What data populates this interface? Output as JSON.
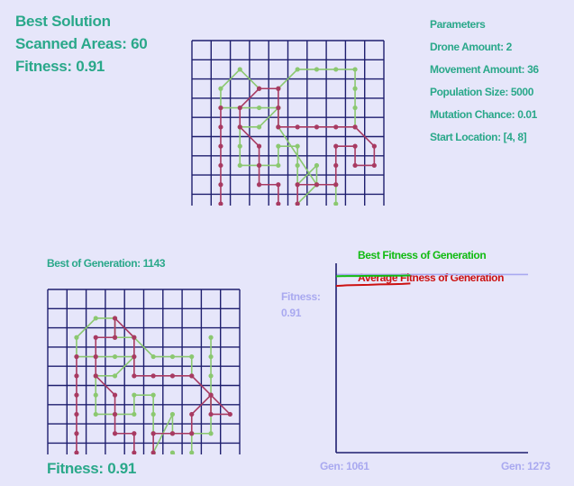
{
  "best_solution": {
    "title": "Best Solution",
    "scanned_label": "Scanned Areas: 60",
    "fitness_label": "Fitness: 0.91"
  },
  "parameters": {
    "title": "Parameters",
    "items": [
      "Drone Amount: 2",
      "Movement Amount: 36",
      "Population Size: 5000",
      "Mutation Chance: 0.01",
      "Start Location: [4, 8]"
    ]
  },
  "generation": {
    "title": "Best of Generation: 1143",
    "fitness_label": "Fitness: 0.91"
  },
  "colors": {
    "background": "#e6e6fa",
    "text": "#2aa88a",
    "grid": "#1e1e6e",
    "drone_1": "#8bc870",
    "drone_2": "#a83a62",
    "best_fitness": "#11bb11",
    "average_fitness": "#cc1111",
    "reference": "#a9a9f0"
  },
  "grids": {
    "rows": 9,
    "cols": 10,
    "best_paths": [
      {
        "name": "drone-1",
        "color": "#8bc870",
        "points": [
          [
            8,
            4
          ],
          [
            8,
            3
          ],
          [
            8,
            2
          ],
          [
            8,
            1
          ],
          [
            7,
            1
          ],
          [
            6,
            1
          ],
          [
            5,
            1
          ],
          [
            4,
            2
          ],
          [
            3,
            2
          ],
          [
            2,
            1
          ],
          [
            1,
            2
          ],
          [
            1,
            3
          ],
          [
            2,
            3
          ],
          [
            3,
            3
          ],
          [
            4,
            3
          ],
          [
            3,
            4
          ],
          [
            2,
            4
          ],
          [
            2,
            5
          ],
          [
            2,
            6
          ],
          [
            3,
            6
          ],
          [
            4,
            6
          ],
          [
            4,
            5
          ],
          [
            5,
            5
          ],
          [
            5,
            6
          ],
          [
            5,
            7
          ],
          [
            6,
            6
          ],
          [
            6,
            7
          ],
          [
            5,
            8
          ],
          [
            5,
            9
          ],
          [
            6,
            9
          ],
          [
            7,
            9
          ],
          [
            7,
            8
          ],
          [
            7,
            7
          ],
          [
            6,
            7
          ],
          [
            4,
            4
          ],
          [
            4,
            3
          ]
        ]
      },
      {
        "name": "drone-2",
        "color": "#a83a62",
        "points": [
          [
            4,
            8
          ],
          [
            4,
            7
          ],
          [
            3,
            7
          ],
          [
            3,
            6
          ],
          [
            3,
            5
          ],
          [
            2,
            4
          ],
          [
            2,
            3
          ],
          [
            3,
            2
          ],
          [
            4,
            2
          ],
          [
            4,
            3
          ],
          [
            4,
            4
          ],
          [
            5,
            4
          ],
          [
            6,
            4
          ],
          [
            7,
            4
          ],
          [
            8,
            4
          ],
          [
            9,
            5
          ],
          [
            9,
            6
          ],
          [
            8,
            6
          ],
          [
            8,
            5
          ],
          [
            7,
            5
          ],
          [
            7,
            6
          ],
          [
            7,
            7
          ],
          [
            6,
            7
          ],
          [
            5,
            7
          ],
          [
            5,
            8
          ],
          [
            5,
            9
          ],
          [
            4,
            9
          ],
          [
            3,
            9
          ],
          [
            2,
            9
          ],
          [
            1,
            9
          ],
          [
            1,
            8
          ],
          [
            1,
            7
          ],
          [
            1,
            6
          ],
          [
            1,
            5
          ],
          [
            1,
            4
          ],
          [
            1,
            3
          ]
        ]
      }
    ],
    "generation_paths": [
      {
        "name": "drone-1",
        "color": "#8bc870",
        "points": [
          [
            7,
            4
          ],
          [
            7,
            3
          ],
          [
            6,
            3
          ],
          [
            5,
            3
          ],
          [
            4,
            2
          ],
          [
            3,
            2
          ],
          [
            3,
            1
          ],
          [
            2,
            1
          ],
          [
            1,
            2
          ],
          [
            1,
            3
          ],
          [
            2,
            3
          ],
          [
            3,
            3
          ],
          [
            4,
            3
          ],
          [
            3,
            4
          ],
          [
            2,
            4
          ],
          [
            2,
            5
          ],
          [
            2,
            6
          ],
          [
            3,
            6
          ],
          [
            4,
            6
          ],
          [
            4,
            5
          ],
          [
            5,
            5
          ],
          [
            5,
            6
          ],
          [
            5,
            7
          ],
          [
            6,
            7
          ],
          [
            6,
            6
          ],
          [
            5,
            8
          ],
          [
            6,
            9
          ],
          [
            6,
            8
          ],
          [
            7,
            9
          ],
          [
            7,
            8
          ],
          [
            7,
            7
          ],
          [
            8,
            7
          ],
          [
            8,
            5
          ],
          [
            8,
            4
          ],
          [
            8,
            3
          ],
          [
            8,
            2
          ]
        ]
      },
      {
        "name": "drone-2",
        "color": "#a83a62",
        "points": [
          [
            4,
            8
          ],
          [
            4,
            7
          ],
          [
            3,
            7
          ],
          [
            3,
            6
          ],
          [
            3,
            5
          ],
          [
            2,
            4
          ],
          [
            2,
            3
          ],
          [
            2,
            2
          ],
          [
            3,
            2
          ],
          [
            3,
            1
          ],
          [
            4,
            2
          ],
          [
            4,
            3
          ],
          [
            4,
            4
          ],
          [
            5,
            4
          ],
          [
            6,
            4
          ],
          [
            7,
            4
          ],
          [
            8,
            5
          ],
          [
            9,
            6
          ],
          [
            8,
            6
          ],
          [
            8,
            5
          ],
          [
            7,
            6
          ],
          [
            7,
            7
          ],
          [
            6,
            7
          ],
          [
            5,
            7
          ],
          [
            5,
            8
          ],
          [
            5,
            9
          ],
          [
            4,
            9
          ],
          [
            3,
            9
          ],
          [
            2,
            9
          ],
          [
            1,
            9
          ],
          [
            1,
            8
          ],
          [
            1,
            7
          ],
          [
            1,
            6
          ],
          [
            1,
            5
          ],
          [
            1,
            4
          ],
          [
            1,
            3
          ]
        ]
      }
    ]
  },
  "chart_data": {
    "type": "line",
    "title": "",
    "series": [
      {
        "name": "Best Fitness of Generation",
        "x": [
          1061,
          1073,
          1085,
          1097,
          1109,
          1121,
          1134,
          1143
        ],
        "values": [
          0.902,
          0.903,
          0.903,
          0.904,
          0.904,
          0.905,
          0.905,
          0.906
        ]
      },
      {
        "name": "Average Fitness of Generation",
        "x": [
          1061,
          1073,
          1085,
          1097,
          1109,
          1121,
          1134,
          1143
        ],
        "values": [
          0.858,
          0.861,
          0.862,
          0.863,
          0.865,
          0.866,
          0.867,
          0.869
        ]
      }
    ],
    "reference_line": {
      "label": "Fitness:\n0.91",
      "value": 0.91
    },
    "x_range": [
      1061,
      1273
    ],
    "ylim": [
      0.1,
      0.92
    ],
    "x_tick_labels": [
      "Gen: 1061",
      "Gen: 1273"
    ],
    "y_label_lines": [
      "Fitness:",
      "0.91"
    ],
    "legend_placement": "top"
  }
}
